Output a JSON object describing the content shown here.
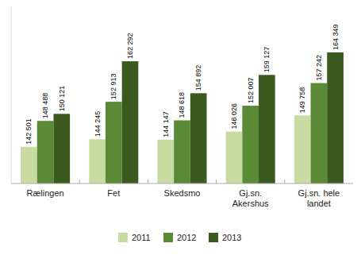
{
  "chart_data": {
    "type": "bar",
    "categories": [
      "Rælingen",
      "Fet",
      "Skedsmo",
      "Gj.sn.\nAkershus",
      "Gj.sn. hele\nlandet"
    ],
    "series": [
      {
        "name": "2011",
        "color": "#c8dba0",
        "values": [
          142501,
          144245,
          144147,
          146026,
          149758
        ],
        "value_labels": [
          "142 501",
          "144 245",
          "144 147",
          "146 026",
          "149 758"
        ]
      },
      {
        "name": "2012",
        "color": "#5a8a35",
        "values": [
          148488,
          152913,
          148618,
          152007,
          157242
        ],
        "value_labels": [
          "148 488",
          "152 913",
          "148 618",
          "152 007",
          "157 242"
        ]
      },
      {
        "name": "2013",
        "color": "#3a5a20",
        "values": [
          150121,
          162292,
          154892,
          159127,
          164349
        ],
        "value_labels": [
          "150 121",
          "162 292",
          "154 892",
          "159 127",
          "164 349"
        ]
      }
    ],
    "ylim": [
      134000,
      175000
    ],
    "data_labels": true,
    "tick_labels": "x",
    "grid": false,
    "legend": "bottom"
  }
}
